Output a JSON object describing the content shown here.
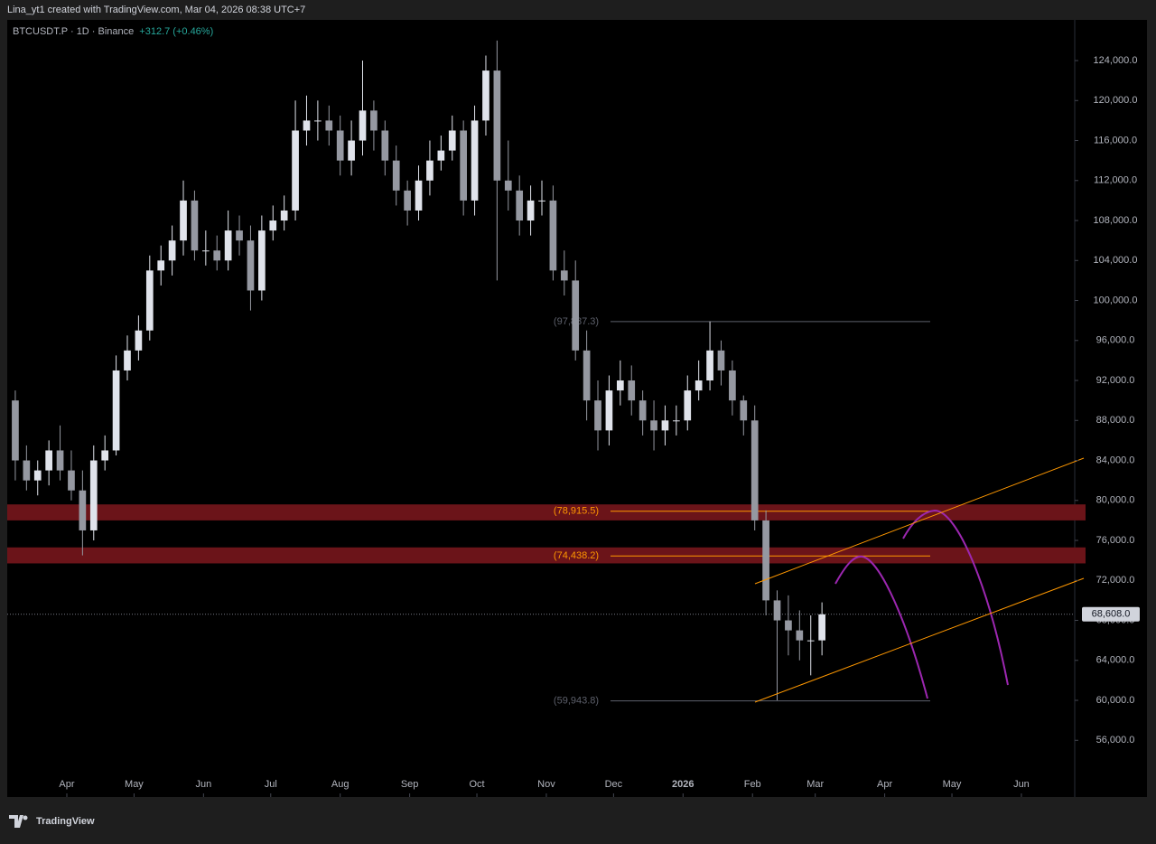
{
  "header": {
    "text": "Lina_yt1 created with TradingView.com, Mar 04, 2026 08:38 UTC+7"
  },
  "footer": {
    "brand": "TradingView"
  },
  "chart_data": {
    "type": "candlestick",
    "symbol": "BTCUSDT.P · 1D · Binance",
    "change": "+312.7 (+0.46%)",
    "up_color": "#e0e3eb",
    "down_color": "#9598a1",
    "x": [
      8,
      13,
      18,
      23,
      28,
      33,
      38,
      43,
      48,
      53,
      58,
      63,
      68,
      73,
      78,
      83,
      88,
      93,
      98,
      103,
      108,
      113,
      118,
      123,
      128,
      133,
      138,
      143,
      148,
      153,
      158,
      163,
      168,
      173,
      178,
      183,
      188,
      193,
      198,
      203,
      208,
      213,
      218,
      223,
      228,
      233,
      238,
      243,
      248,
      253,
      258,
      263,
      268,
      273,
      278,
      283,
      288,
      293,
      298,
      303,
      308,
      313,
      318,
      323,
      328,
      333,
      338,
      343,
      348,
      353,
      358,
      363,
      368
    ],
    "open": [
      90000,
      84000,
      82000,
      83000,
      85000,
      83000,
      81000,
      77000,
      84000,
      85000,
      93000,
      95000,
      97000,
      103000,
      104000,
      106000,
      110000,
      105000,
      105000,
      104000,
      107000,
      106000,
      101000,
      107000,
      108000,
      109000,
      117000,
      118000,
      118000,
      117000,
      114000,
      116000,
      119000,
      117000,
      114000,
      111000,
      109000,
      112000,
      114000,
      115000,
      117000,
      110000,
      118000,
      123000,
      112000,
      111000,
      108000,
      110000,
      110000,
      103000,
      102000,
      95000,
      90000,
      87000,
      91000,
      92000,
      90000,
      88000,
      87000,
      88000,
      88000,
      91000,
      92000,
      95000,
      93000,
      90000,
      88000,
      78000,
      70000,
      68000,
      67000,
      66000,
      66000
    ],
    "high": [
      91000,
      85500,
      84000,
      86000,
      87500,
      85000,
      83000,
      85500,
      86500,
      94500,
      96500,
      98500,
      104500,
      105500,
      107500,
      112000,
      111000,
      107000,
      106500,
      109000,
      108500,
      107500,
      108500,
      109500,
      110500,
      120000,
      120500,
      120000,
      119500,
      118500,
      118000,
      124000,
      120000,
      118000,
      115500,
      112000,
      113500,
      116000,
      116500,
      118500,
      118000,
      119500,
      124500,
      126000,
      116000,
      112500,
      111500,
      112000,
      111500,
      105000,
      104000,
      97000,
      92000,
      92500,
      94000,
      93500,
      91000,
      90000,
      89500,
      89500,
      92500,
      94000,
      97900,
      96000,
      94000,
      90500,
      89500,
      79000,
      71000,
      70500,
      69000,
      68500,
      69800
    ],
    "low": [
      82000,
      81000,
      80500,
      81500,
      82000,
      80000,
      74500,
      76000,
      83000,
      84500,
      92000,
      94000,
      96000,
      101500,
      102500,
      104500,
      104000,
      103500,
      103000,
      103000,
      104500,
      99000,
      100000,
      106000,
      107000,
      108000,
      115500,
      116000,
      115500,
      112500,
      112500,
      114500,
      115000,
      112500,
      109500,
      107500,
      108000,
      110500,
      113000,
      114000,
      108500,
      108500,
      116500,
      102000,
      109000,
      106500,
      106500,
      108500,
      102000,
      100500,
      94000,
      88000,
      85000,
      85500,
      89500,
      88500,
      86500,
      85000,
      85500,
      86500,
      87000,
      90000,
      91000,
      91500,
      88500,
      86500,
      77000,
      68500,
      60000,
      64500,
      64000,
      62500,
      64500
    ],
    "close": [
      84000,
      82000,
      83000,
      85000,
      83000,
      81000,
      77000,
      84000,
      85000,
      93000,
      95000,
      97000,
      103000,
      104000,
      106000,
      110000,
      105000,
      105000,
      104000,
      107000,
      106000,
      101000,
      107000,
      108000,
      109000,
      117000,
      118000,
      118000,
      117000,
      114000,
      116000,
      119000,
      117000,
      114000,
      111000,
      109000,
      112000,
      114000,
      115000,
      117000,
      110000,
      118000,
      123000,
      112000,
      111000,
      108000,
      110000,
      110000,
      103000,
      102000,
      95000,
      90000,
      87000,
      91000,
      92000,
      90000,
      88000,
      87000,
      88000,
      88000,
      91000,
      92000,
      95000,
      93000,
      90000,
      88000,
      78000,
      70000,
      68000,
      67000,
      66000,
      66000,
      68600
    ],
    "xlim": [
      4.4,
      480.8
    ],
    "xticks": [
      {
        "value": 31,
        "label": "Apr"
      },
      {
        "value": 61,
        "label": "May"
      },
      {
        "value": 92,
        "label": "Jun"
      },
      {
        "value": 122,
        "label": "Jul"
      },
      {
        "value": 153,
        "label": "Aug"
      },
      {
        "value": 184,
        "label": "Sep"
      },
      {
        "value": 214,
        "label": "Oct"
      },
      {
        "value": 245,
        "label": "Nov"
      },
      {
        "value": 275,
        "label": "Dec"
      },
      {
        "value": 306,
        "label": "2026"
      },
      {
        "value": 337,
        "label": "Feb"
      },
      {
        "value": 365,
        "label": "Mar"
      },
      {
        "value": 396,
        "label": "Apr"
      },
      {
        "value": 426,
        "label": "May"
      },
      {
        "value": 457,
        "label": "Jun"
      }
    ],
    "ylim": [
      50330,
      128070
    ],
    "yticks": [
      {
        "value": 56000,
        "label": "56,000.0"
      },
      {
        "value": 60000,
        "label": "60,000.0"
      },
      {
        "value": 64000,
        "label": "64,000.0"
      },
      {
        "value": 68000,
        "label": "68,000.0"
      },
      {
        "value": 72000,
        "label": "72,000.0"
      },
      {
        "value": 76000,
        "label": "76,000.0"
      },
      {
        "value": 80000,
        "label": "80,000.0"
      },
      {
        "value": 84000,
        "label": "84,000.0"
      },
      {
        "value": 88000,
        "label": "88,000.0"
      },
      {
        "value": 92000,
        "label": "92,000.0"
      },
      {
        "value": 96000,
        "label": "96,000.0"
      },
      {
        "value": 100000,
        "label": "100,000.0"
      },
      {
        "value": 104000,
        "label": "104,000.0"
      },
      {
        "value": 108000,
        "label": "108,000.0"
      },
      {
        "value": 112000,
        "label": "112,000.0"
      },
      {
        "value": 116000,
        "label": "116,000.0"
      },
      {
        "value": 120000,
        "label": "120,000.0"
      },
      {
        "value": 124000,
        "label": "124,000.0"
      }
    ],
    "zones": [
      {
        "from": 78000,
        "to": 79600,
        "color": "#6b1419"
      },
      {
        "from": 73700,
        "to": 75300,
        "color": "#6b1419"
      }
    ],
    "levels": [
      {
        "value": 97887.3,
        "label": "(97,887.3)",
        "color": "#5d606b"
      },
      {
        "value": 78915.5,
        "label": "(78,915.5)",
        "color": "#ff9800"
      },
      {
        "value": 74438.2,
        "label": "(74,438.2)",
        "color": "#ff9800"
      },
      {
        "value": 59943.8,
        "label": "(59,943.8)",
        "color": "#5d606b"
      }
    ],
    "current": {
      "value": 68608,
      "label": "68,608.0"
    }
  }
}
